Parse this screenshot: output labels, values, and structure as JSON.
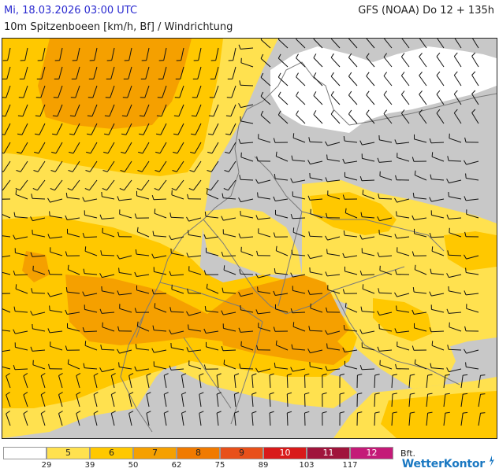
{
  "header": {
    "datetime": "Mi, 18.03.2026 03:00 UTC",
    "model_run": "GFS (NOAA) Do 12 + 135h",
    "subtitle": "10m Spitzenboeen [km/h, Bf] / Windrichtung"
  },
  "legend": {
    "unit": "Bft.",
    "classes": [
      {
        "bft": "",
        "color": "#ffffff"
      },
      {
        "bft": "5",
        "color": "#ffe14f"
      },
      {
        "bft": "6",
        "color": "#ffc800"
      },
      {
        "bft": "7",
        "color": "#f5a000"
      },
      {
        "bft": "8",
        "color": "#f07a00"
      },
      {
        "bft": "9",
        "color": "#e8501a"
      },
      {
        "bft": "10",
        "color": "#d91a1a"
      },
      {
        "bft": "11",
        "color": "#a0143c"
      },
      {
        "bft": "12",
        "color": "#c41a78"
      }
    ],
    "kmh_labels": [
      "29",
      "39",
      "50",
      "62",
      "75",
      "89",
      "103",
      "117"
    ]
  },
  "colors": {
    "land_low": "#c8c8c8",
    "calm": "#ffffff",
    "border": "#7a7a7a",
    "barb": "#111111"
  },
  "branding": {
    "logo_text_a": "Wetter",
    "logo_text_b": "Kontor"
  }
}
